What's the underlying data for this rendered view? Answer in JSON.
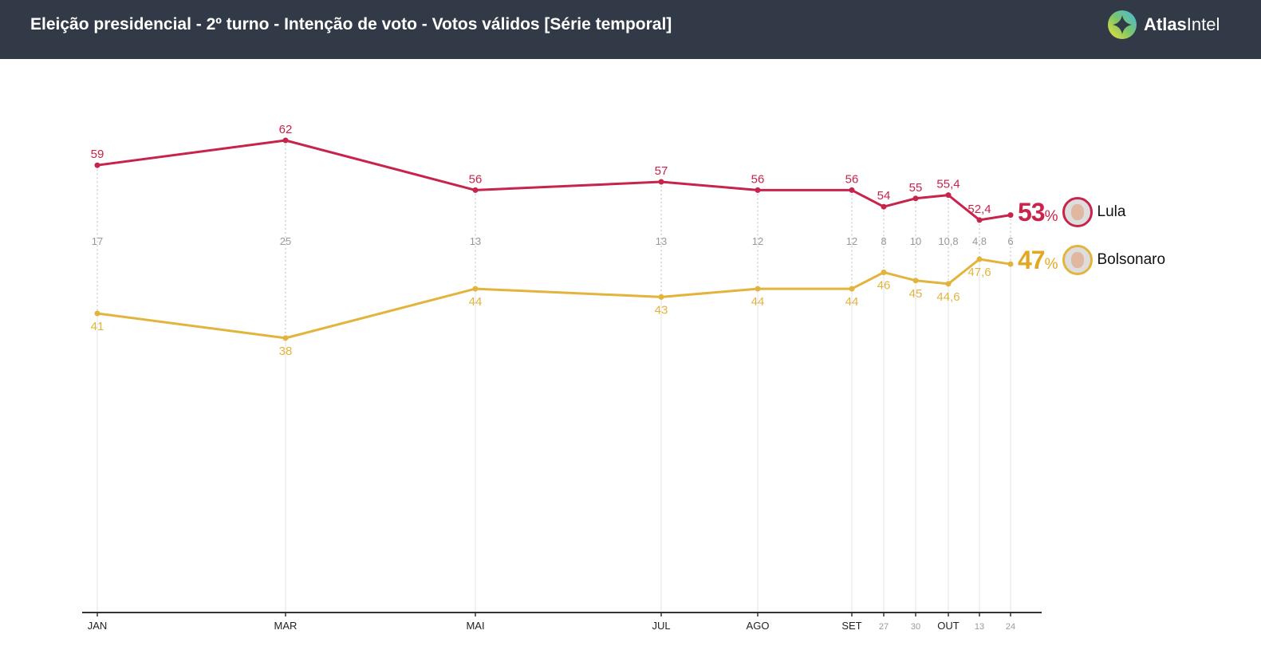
{
  "header": {
    "title": "Eleição presidencial - 2º turno - Intenção de voto - Votos válidos [Série temporal]",
    "logo_main": "Atlas",
    "logo_sub": "Intel"
  },
  "colors": {
    "lula": "#c8234a",
    "bolsonaro": "#e3b43c",
    "undecided": "#999999",
    "header_bg": "#323a47"
  },
  "chart_data": {
    "type": "line",
    "categories": [
      "JAN",
      "MAR",
      "MAI",
      "JUL",
      "AGO",
      "SET",
      "27",
      "30",
      "OUT",
      "13",
      "24"
    ],
    "major_ticks": [
      "JAN",
      "MAR",
      "MAI",
      "JUL",
      "AGO",
      "SET",
      "OUT"
    ],
    "series": [
      {
        "name": "Lula",
        "values": [
          59,
          62,
          56,
          57,
          56,
          56,
          54,
          55,
          55.4,
          52.4,
          53
        ],
        "labels": [
          "59",
          "62",
          "56",
          "57",
          "56",
          "56",
          "54",
          "55",
          "55,4",
          "52,4",
          ""
        ],
        "final": "53",
        "color": "#c8234a"
      },
      {
        "name": "Bolsonaro",
        "values": [
          41,
          38,
          44,
          43,
          44,
          44,
          46,
          45,
          44.6,
          47.6,
          47
        ],
        "labels": [
          "41",
          "38",
          "44",
          "43",
          "44",
          "44",
          "46",
          "45",
          "44,6",
          "47,6",
          ""
        ],
        "final": "47",
        "color": "#e3b43c"
      }
    ],
    "gap_labels": [
      "17",
      "25",
      "13",
      "13",
      "12",
      "12",
      "8",
      "10",
      "10,8",
      "4,8",
      "6"
    ],
    "percent_sign": "%",
    "grid": false
  }
}
